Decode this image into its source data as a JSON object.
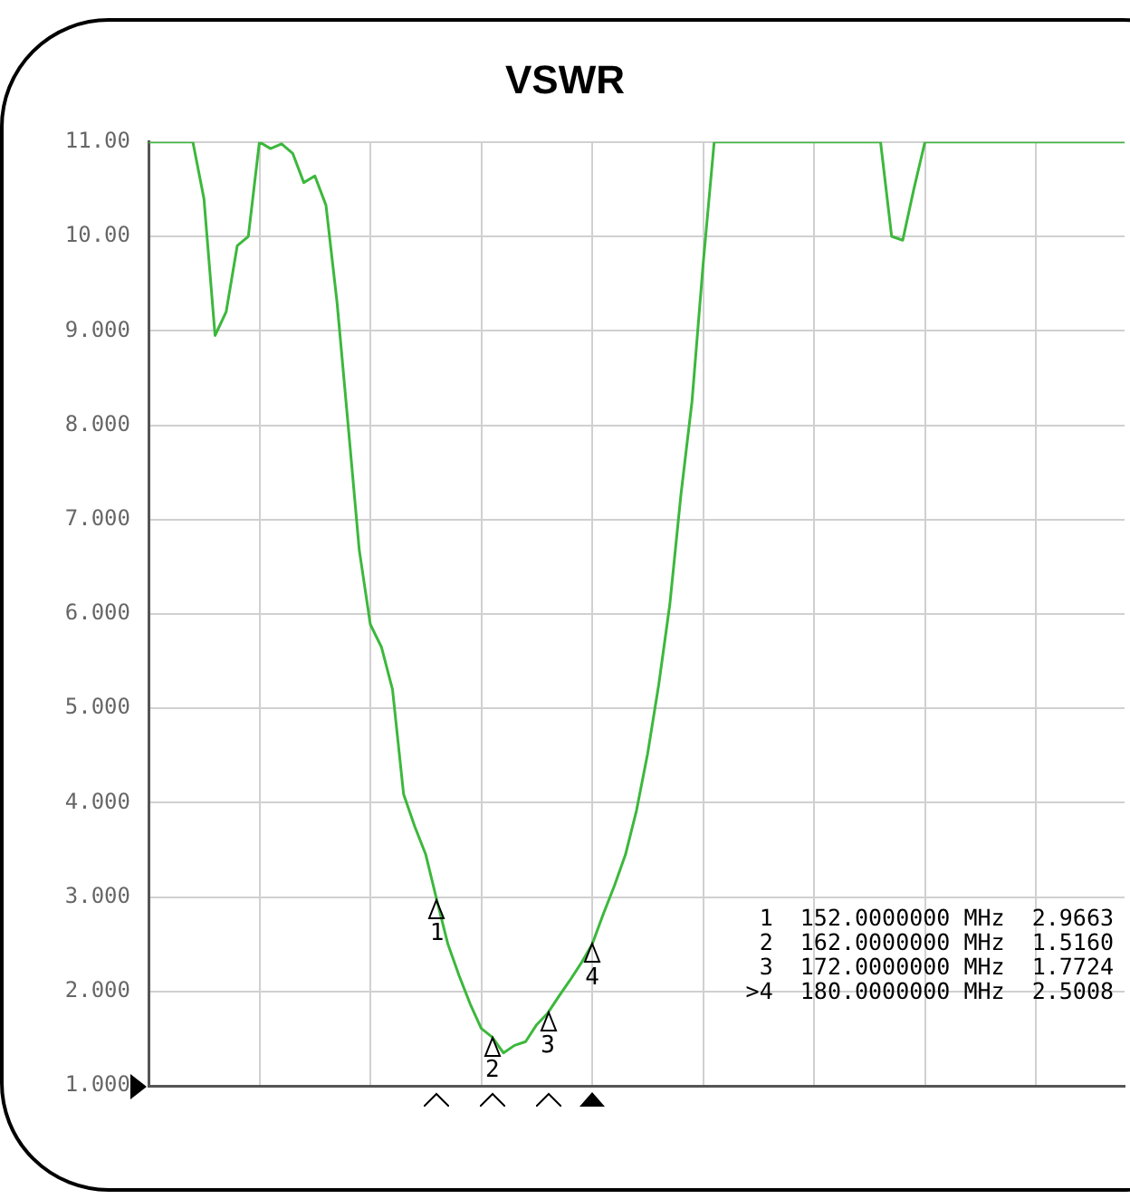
{
  "chart_data": {
    "type": "line",
    "title": "VSWR",
    "categories": [
      null,
      null,
      null,
      null,
      null,
      null,
      null,
      null,
      null,
      null,
      null,
      null,
      null,
      null,
      null,
      null,
      null,
      null,
      null,
      null,
      null,
      null,
      null,
      null,
      null,
      null,
      null,
      null,
      null,
      null,
      null,
      null,
      null,
      null,
      null,
      null,
      null,
      null,
      null,
      null,
      null,
      null,
      null,
      null,
      null,
      null,
      null,
      null,
      null,
      null,
      null,
      null,
      null,
      null,
      null,
      null,
      null,
      null,
      null,
      null,
      null,
      null,
      null,
      null,
      null,
      null,
      null,
      null,
      null,
      null,
      null,
      null,
      null,
      null,
      null,
      null,
      null,
      null,
      null,
      null,
      null,
      null,
      null,
      null,
      null,
      null,
      null,
      null,
      null
    ],
    "series": [
      {
        "color": "#3cb83c",
        "values": [
          11,
          11,
          11,
          11,
          11,
          10.4,
          8.95,
          9.2,
          9.9,
          10.0,
          11.0,
          10.93,
          10.98,
          10.88,
          10.57,
          10.64,
          10.33,
          9.3,
          8.0,
          6.68,
          5.89,
          5.65,
          5.2,
          4.09,
          3.75,
          3.45,
          2.9663,
          2.5,
          2.17,
          1.87,
          1.61,
          1.516,
          1.35,
          1.43,
          1.47,
          1.65,
          1.7724,
          1.95,
          2.12,
          2.3,
          2.5008,
          2.82,
          3.12,
          3.45,
          3.92,
          4.52,
          5.25,
          6.1,
          7.26,
          8.25,
          9.7,
          11,
          11,
          11,
          11,
          11,
          11,
          11,
          11,
          11,
          11,
          11,
          11,
          11,
          11,
          11,
          11,
          10.0,
          9.96,
          10.5,
          11,
          11,
          11,
          11,
          11,
          11,
          11,
          11,
          11,
          11,
          11,
          11,
          11,
          11,
          11,
          11,
          11,
          11,
          11
        ]
      }
    ],
    "ylim": [
      1,
      11
    ],
    "yticks": [
      {
        "value": 1,
        "label": "1.000"
      },
      {
        "value": 2,
        "label": "2.000"
      },
      {
        "value": 3,
        "label": "3.000"
      },
      {
        "value": 4,
        "label": "4.000"
      },
      {
        "value": 5,
        "label": "5.000"
      },
      {
        "value": 6,
        "label": "6.000"
      },
      {
        "value": 7,
        "label": "7.000"
      },
      {
        "value": 8,
        "label": "8.000"
      },
      {
        "value": 9,
        "label": "9.000"
      },
      {
        "value": 10,
        "label": "10.00"
      },
      {
        "value": 11,
        "label": "11.00"
      }
    ],
    "grid": true,
    "legend": false,
    "marker": "none",
    "line_style": "solid",
    "annotations": [
      {
        "text": "1",
        "y": 2.9663
      },
      {
        "text": "2",
        "y": 1.516
      },
      {
        "text": "3",
        "y": 1.7724
      },
      {
        "text": "4",
        "y": 2.5008
      },
      "1  152.0000000 MHz  2.9663",
      "2  162.0000000 MHz  1.5160",
      "3  172.0000000 MHz  1.7724",
      ">4  180.0000000 MHz  2.5008"
    ]
  }
}
